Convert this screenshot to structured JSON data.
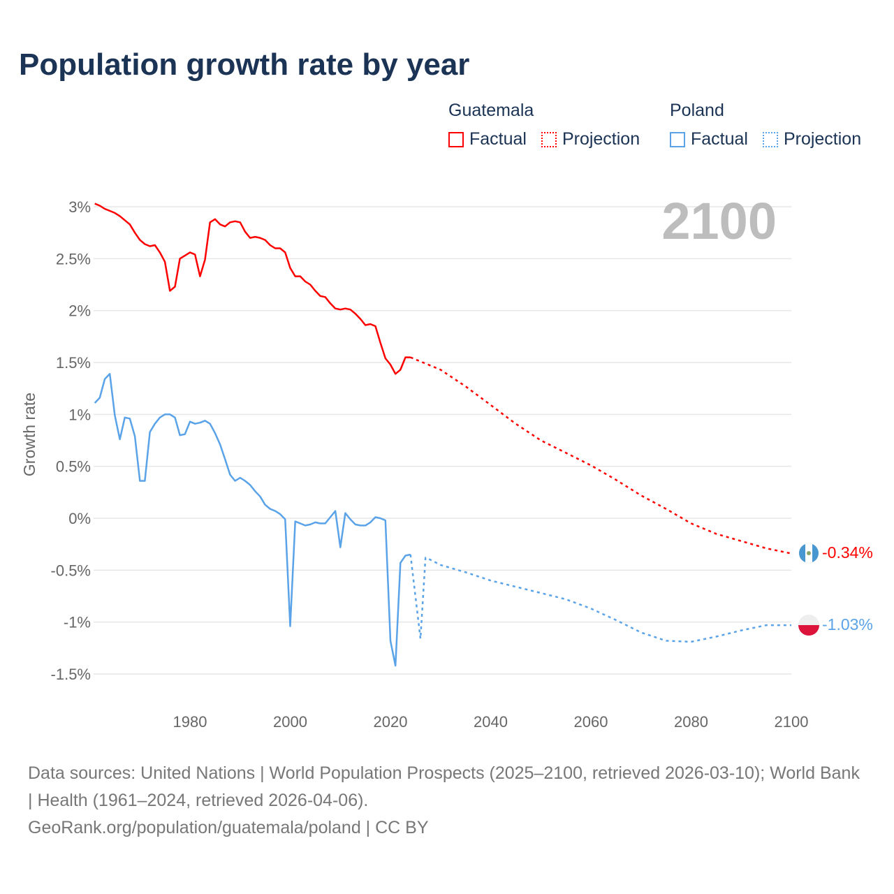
{
  "title": "Population growth rate by year",
  "legend": {
    "groups": [
      {
        "name": "Guatemala",
        "color": "#ff0000",
        "factual": "Factual",
        "projection": "Projection"
      },
      {
        "name": "Poland",
        "color": "#5aa3e8",
        "factual": "Factual",
        "projection": "Projection"
      }
    ]
  },
  "year_display": "2100",
  "end_labels": {
    "guatemala": "-0.34%",
    "poland": "-1.03%"
  },
  "footer": {
    "sources": "Data sources: United Nations | World Population Prospects (2025–2100, retrieved 2026-03-10); World Bank | Health (1961–2024, retrieved 2026-04-06).",
    "link": "GeoRank.org/population/guatemala/poland | CC BY"
  },
  "chart_data": {
    "type": "line",
    "title": "Population growth rate by year",
    "xlabel": "",
    "ylabel": "Growth rate",
    "xlim": [
      1961,
      2100
    ],
    "ylim": [
      -1.7,
      3.1
    ],
    "x_ticks": [
      1980,
      2000,
      2020,
      2040,
      2060,
      2080,
      2100
    ],
    "x_tick_labels": [
      "1980",
      "2000",
      "2020",
      "2040",
      "2060",
      "2080",
      "2100"
    ],
    "y_ticks": [
      3,
      2.5,
      2,
      1.5,
      1,
      0.5,
      0,
      -0.5,
      -1,
      -1.5
    ],
    "y_tick_labels": [
      "3%",
      "2.5%",
      "2%",
      "1.5%",
      "1%",
      "0.5%",
      "0%",
      "-0.5%",
      "-1%",
      "-1.5%"
    ],
    "grid": true,
    "legend_position": "top-right",
    "series": [
      {
        "name": "Guatemala Factual",
        "color": "#ff0000",
        "style": "solid",
        "start_year": 1961,
        "values": [
          3.03,
          3.01,
          2.98,
          2.96,
          2.94,
          2.91,
          2.87,
          2.83,
          2.75,
          2.68,
          2.64,
          2.62,
          2.63,
          2.56,
          2.47,
          2.19,
          2.23,
          2.5,
          2.53,
          2.56,
          2.54,
          2.33,
          2.49,
          2.85,
          2.88,
          2.83,
          2.81,
          2.85,
          2.86,
          2.85,
          2.76,
          2.7,
          2.71,
          2.7,
          2.68,
          2.63,
          2.6,
          2.6,
          2.56,
          2.41,
          2.33,
          2.33,
          2.28,
          2.25,
          2.19,
          2.14,
          2.13,
          2.07,
          2.02,
          2.01,
          2.02,
          2.01,
          1.97,
          1.92,
          1.86,
          1.87,
          1.85,
          1.69,
          1.54,
          1.48,
          1.39,
          1.43,
          1.55,
          1.55
        ]
      },
      {
        "name": "Guatemala Projection",
        "color": "#ff0000",
        "style": "dotted",
        "x": [
          2024,
          2030,
          2035,
          2040,
          2045,
          2050,
          2055,
          2060,
          2065,
          2070,
          2075,
          2080,
          2085,
          2090,
          2095,
          2100
        ],
        "values": [
          1.55,
          1.43,
          1.27,
          1.09,
          0.91,
          0.75,
          0.63,
          0.51,
          0.37,
          0.22,
          0.09,
          -0.05,
          -0.15,
          -0.22,
          -0.29,
          -0.34
        ]
      },
      {
        "name": "Poland Factual",
        "color": "#5aa3e8",
        "style": "solid",
        "start_year": 1961,
        "values": [
          1.11,
          1.16,
          1.34,
          1.39,
          0.99,
          0.76,
          0.97,
          0.96,
          0.79,
          0.36,
          0.36,
          0.83,
          0.91,
          0.97,
          1.0,
          1.0,
          0.97,
          0.8,
          0.81,
          0.93,
          0.91,
          0.92,
          0.94,
          0.91,
          0.82,
          0.71,
          0.57,
          0.42,
          0.36,
          0.39,
          0.36,
          0.32,
          0.26,
          0.21,
          0.13,
          0.09,
          0.07,
          0.04,
          -0.01,
          -1.04,
          -0.03,
          -0.05,
          -0.07,
          -0.06,
          -0.04,
          -0.05,
          -0.05,
          0.01,
          0.07,
          -0.28,
          0.05,
          -0.01,
          -0.06,
          -0.07,
          -0.07,
          -0.04,
          0.01,
          0.0,
          -0.02,
          -1.18,
          -1.42,
          -0.43,
          -0.36,
          -0.35
        ]
      },
      {
        "name": "Poland Projection",
        "color": "#5aa3e8",
        "style": "dotted",
        "x": [
          2024,
          2026,
          2027,
          2028,
          2030,
          2035,
          2040,
          2045,
          2050,
          2055,
          2060,
          2065,
          2070,
          2075,
          2080,
          2085,
          2090,
          2095,
          2100
        ],
        "values": [
          -0.35,
          -1.16,
          -0.38,
          -0.4,
          -0.45,
          -0.52,
          -0.6,
          -0.66,
          -0.72,
          -0.78,
          -0.87,
          -0.98,
          -1.1,
          -1.18,
          -1.19,
          -1.14,
          -1.08,
          -1.03,
          -1.03
        ]
      }
    ]
  }
}
